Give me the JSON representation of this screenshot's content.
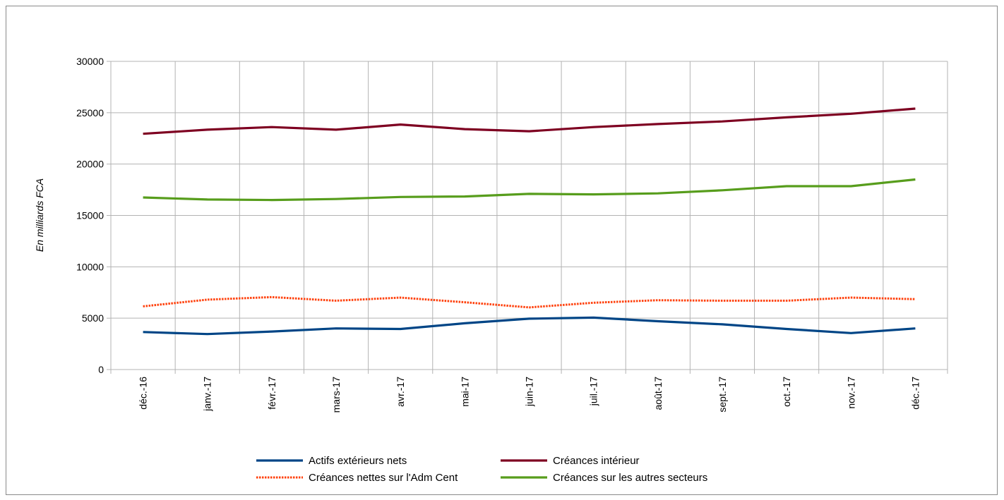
{
  "chart_data": {
    "type": "line",
    "title": "",
    "xlabel": "",
    "ylabel": "En milliards FCA",
    "ylim": [
      0,
      30000
    ],
    "yticks": [
      0,
      5000,
      10000,
      15000,
      20000,
      25000,
      30000
    ],
    "grid": true,
    "legend_position": "bottom",
    "categories": [
      "déc.-16",
      "janv.-17",
      "févr.-17",
      "mars-17",
      "avr.-17",
      "mai-17",
      "juin-17",
      "juil.-17",
      "août-17",
      "sept.-17",
      "oct.-17",
      "nov.-17",
      "déc.-17"
    ],
    "series": [
      {
        "name": "Actifs extérieurs nets",
        "color": "#004586",
        "dash": "solid",
        "values": [
          3650,
          3450,
          3700,
          4000,
          3950,
          4500,
          4950,
          5050,
          4700,
          4400,
          3950,
          3550,
          4000
        ]
      },
      {
        "name": "Créances intérieur",
        "color": "#7e0021",
        "dash": "solid",
        "values": [
          22950,
          23350,
          23600,
          23350,
          23850,
          23400,
          23200,
          23600,
          23900,
          24150,
          24550,
          24900,
          25400
        ]
      },
      {
        "name": "Créances nettes sur l'Adm Cent",
        "color": "#ff420e",
        "dash": "dotted",
        "values": [
          6150,
          6800,
          7050,
          6700,
          7000,
          6550,
          6050,
          6500,
          6750,
          6700,
          6700,
          7000,
          6850
        ]
      },
      {
        "name": "Créances sur les autres secteurs",
        "color": "#579d1c",
        "dash": "solid",
        "values": [
          16750,
          16550,
          16500,
          16600,
          16800,
          16850,
          17100,
          17050,
          17150,
          17450,
          17850,
          17850,
          18500
        ]
      }
    ]
  }
}
